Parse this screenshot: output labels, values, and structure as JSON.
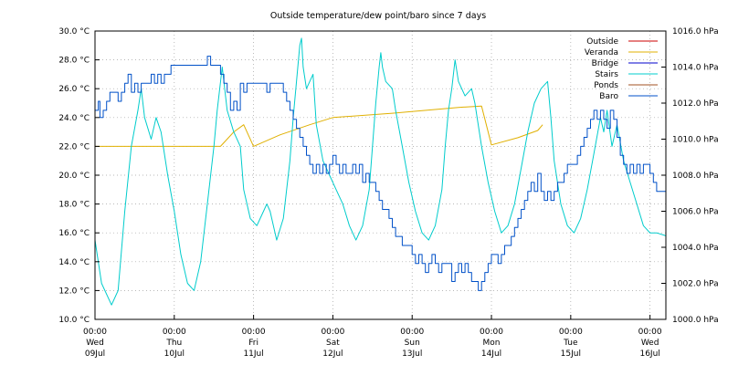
{
  "chart_data": {
    "type": "line",
    "title": "Outside temperature/dew point/baro since 7 days",
    "y_left": {
      "ticks": [
        30,
        28,
        26,
        24,
        22,
        20,
        18,
        16,
        14,
        12,
        10
      ],
      "tick_labels": [
        "30.0 °C",
        "28.0 °C",
        "26.0 °C",
        "24.0 °C",
        "22.0 °C",
        "20.0 °C",
        "18.0 °C",
        "16.0 °C",
        "14.0 °C",
        "12.0 °C",
        "10.0 °C"
      ],
      "range": [
        10,
        30
      ]
    },
    "y_right": {
      "ticks": [
        1016,
        1014,
        1012,
        1010,
        1008,
        1006,
        1004,
        1002,
        1000
      ],
      "tick_labels": [
        "1016.0 hPa",
        "1014.0 hPa",
        "1012.0 hPa",
        "1010.0 hPa",
        "1008.0 hPa",
        "1006.0 hPa",
        "1004.0 hPa",
        "1002.0 hPa",
        "1000.0 hPa"
      ],
      "range": [
        1000,
        1016
      ]
    },
    "x_axis": {
      "unit": "hours since Wed 09 Jul 00:00",
      "range": [
        0,
        172.8
      ],
      "ticks": [
        {
          "h": 0,
          "time": "00:00",
          "day": "Wed",
          "date": "09Jul"
        },
        {
          "h": 24,
          "time": "00:00",
          "day": "Thu",
          "date": "10Jul"
        },
        {
          "h": 48,
          "time": "00:00",
          "day": "Fri",
          "date": "11Jul"
        },
        {
          "h": 72,
          "time": "00:00",
          "day": "Sat",
          "date": "12Jul"
        },
        {
          "h": 96,
          "time": "00:00",
          "day": "Sun",
          "date": "13Jul"
        },
        {
          "h": 120,
          "time": "00:00",
          "day": "Mon",
          "date": "14Jul"
        },
        {
          "h": 144,
          "time": "00:00",
          "day": "Tue",
          "date": "15Jul"
        },
        {
          "h": 168,
          "time": "00:00",
          "day": "Wed",
          "date": "16Jul"
        }
      ]
    },
    "grid": true,
    "legend_position": "top-right",
    "series": [
      {
        "name": "Outside",
        "color": "#cc0000",
        "axis": "left",
        "points": []
      },
      {
        "name": "Veranda",
        "color": "#e0b000",
        "axis": "left",
        "points": [
          [
            0,
            22.0
          ],
          [
            38,
            22.0
          ],
          [
            42,
            23.0
          ],
          [
            45,
            23.5
          ],
          [
            48,
            22.0
          ],
          [
            56,
            22.8
          ],
          [
            65,
            23.5
          ],
          [
            72,
            24.0
          ],
          [
            90,
            24.3
          ],
          [
            110,
            24.7
          ],
          [
            117,
            24.8
          ],
          [
            120,
            22.1
          ],
          [
            128,
            22.6
          ],
          [
            134,
            23.1
          ],
          [
            135.5,
            23.5
          ]
        ]
      },
      {
        "name": "Bridge",
        "color": "#0000cc",
        "axis": "left",
        "points": []
      },
      {
        "name": "Stairs",
        "color": "#00cccc",
        "axis": "left",
        "points": [
          [
            0,
            15.5
          ],
          [
            2,
            12.5
          ],
          [
            5,
            11.0
          ],
          [
            7,
            12.0
          ],
          [
            9,
            17.5
          ],
          [
            11,
            22.0
          ],
          [
            13,
            24.5
          ],
          [
            14,
            26.0
          ],
          [
            15,
            24.0
          ],
          [
            17,
            22.5
          ],
          [
            18.5,
            24.0
          ],
          [
            20,
            23.0
          ],
          [
            22,
            20.0
          ],
          [
            24,
            17.5
          ],
          [
            26,
            14.5
          ],
          [
            28,
            12.5
          ],
          [
            30,
            12.0
          ],
          [
            32,
            14.0
          ],
          [
            34,
            18.0
          ],
          [
            36,
            22.0
          ],
          [
            37,
            24.5
          ],
          [
            38.5,
            27.5
          ],
          [
            40,
            24.5
          ],
          [
            42,
            23.0
          ],
          [
            44,
            22.0
          ],
          [
            45,
            19.0
          ],
          [
            47,
            17.0
          ],
          [
            49,
            16.5
          ],
          [
            51,
            17.5
          ],
          [
            52,
            18.0
          ],
          [
            53,
            17.5
          ],
          [
            55,
            15.5
          ],
          [
            57,
            17.0
          ],
          [
            59,
            21.0
          ],
          [
            60,
            24.0
          ],
          [
            61,
            26.5
          ],
          [
            62,
            29.0
          ],
          [
            62.5,
            29.5
          ],
          [
            63,
            27.5
          ],
          [
            64,
            26.0
          ],
          [
            66,
            27.0
          ],
          [
            67,
            23.5
          ],
          [
            69,
            21.0
          ],
          [
            71,
            20.0
          ],
          [
            73,
            19.0
          ],
          [
            75,
            18.0
          ],
          [
            77,
            16.5
          ],
          [
            79,
            15.5
          ],
          [
            81,
            16.5
          ],
          [
            83,
            19.0
          ],
          [
            84,
            22.0
          ],
          [
            85,
            25.0
          ],
          [
            86,
            27.5
          ],
          [
            86.5,
            28.5
          ],
          [
            87,
            27.5
          ],
          [
            88,
            26.5
          ],
          [
            90,
            26.0
          ],
          [
            91,
            24.5
          ],
          [
            93,
            22.0
          ],
          [
            95,
            19.5
          ],
          [
            97,
            17.5
          ],
          [
            99,
            16.0
          ],
          [
            101,
            15.5
          ],
          [
            103,
            16.5
          ],
          [
            105,
            19.0
          ],
          [
            106,
            22.0
          ],
          [
            107,
            24.5
          ],
          [
            108,
            26.0
          ],
          [
            109,
            28.0
          ],
          [
            110,
            26.5
          ],
          [
            112,
            25.5
          ],
          [
            114,
            26.0
          ],
          [
            115,
            25.0
          ],
          [
            117,
            22.0
          ],
          [
            119,
            19.5
          ],
          [
            121,
            17.5
          ],
          [
            123,
            16.0
          ],
          [
            125,
            16.5
          ],
          [
            127,
            18.0
          ],
          [
            129,
            20.5
          ],
          [
            131,
            23.0
          ],
          [
            133,
            25.0
          ],
          [
            135,
            26.0
          ],
          [
            137,
            26.5
          ],
          [
            138,
            24.0
          ],
          [
            139,
            21.0
          ],
          [
            141,
            18.0
          ],
          [
            143,
            16.5
          ],
          [
            145,
            16.0
          ],
          [
            147,
            17.0
          ],
          [
            149,
            19.0
          ],
          [
            151,
            21.5
          ],
          [
            153,
            24.0
          ],
          [
            154,
            23.0
          ],
          [
            155,
            24.5
          ],
          [
            156.5,
            22.0
          ],
          [
            158,
            23.5
          ],
          [
            160,
            21.0
          ],
          [
            162,
            19.5
          ],
          [
            164,
            18.0
          ],
          [
            166,
            16.5
          ],
          [
            168,
            16.0
          ],
          [
            170,
            16.0
          ],
          [
            172.8,
            15.8
          ]
        ]
      },
      {
        "name": "Ponds",
        "color": "#a05020",
        "axis": "left",
        "points": []
      },
      {
        "name": "Baro",
        "color": "#0050c8",
        "axis": "right",
        "points": [
          [
            0,
            1011.6
          ],
          [
            1,
            1012.1
          ],
          [
            1.5,
            1011.2
          ],
          [
            2.5,
            1011.6
          ],
          [
            3.5,
            1012.1
          ],
          [
            4.5,
            1012.6
          ],
          [
            6,
            1012.6
          ],
          [
            7,
            1012.1
          ],
          [
            8,
            1012.6
          ],
          [
            9,
            1013.1
          ],
          [
            10,
            1013.6
          ],
          [
            11,
            1012.6
          ],
          [
            12,
            1013.1
          ],
          [
            13,
            1012.6
          ],
          [
            14,
            1013.1
          ],
          [
            16,
            1013.1
          ],
          [
            17,
            1013.6
          ],
          [
            18,
            1013.1
          ],
          [
            19,
            1013.6
          ],
          [
            20,
            1013.1
          ],
          [
            21,
            1013.6
          ],
          [
            22,
            1013.6
          ],
          [
            23,
            1014.1
          ],
          [
            26,
            1014.1
          ],
          [
            28,
            1014.1
          ],
          [
            30,
            1014.1
          ],
          [
            32,
            1014.1
          ],
          [
            34,
            1014.6
          ],
          [
            35,
            1014.1
          ],
          [
            37,
            1014.1
          ],
          [
            38,
            1013.6
          ],
          [
            39,
            1013.1
          ],
          [
            40,
            1012.6
          ],
          [
            41,
            1011.6
          ],
          [
            42,
            1012.1
          ],
          [
            43,
            1011.6
          ],
          [
            44,
            1013.1
          ],
          [
            45,
            1012.6
          ],
          [
            46,
            1013.1
          ],
          [
            48,
            1013.1
          ],
          [
            51,
            1013.1
          ],
          [
            52,
            1012.6
          ],
          [
            53,
            1013.1
          ],
          [
            56,
            1013.1
          ],
          [
            57,
            1012.6
          ],
          [
            58,
            1012.1
          ],
          [
            59,
            1011.6
          ],
          [
            60,
            1011.1
          ],
          [
            61,
            1010.6
          ],
          [
            62,
            1010.1
          ],
          [
            63,
            1009.6
          ],
          [
            64,
            1009.1
          ],
          [
            65,
            1008.6
          ],
          [
            66,
            1008.1
          ],
          [
            67,
            1008.6
          ],
          [
            68,
            1008.1
          ],
          [
            69,
            1008.6
          ],
          [
            70,
            1008.1
          ],
          [
            71,
            1008.6
          ],
          [
            72,
            1009.1
          ],
          [
            73,
            1008.6
          ],
          [
            74,
            1008.1
          ],
          [
            75,
            1008.6
          ],
          [
            76,
            1008.1
          ],
          [
            78,
            1008.6
          ],
          [
            79,
            1008.1
          ],
          [
            80,
            1008.6
          ],
          [
            81,
            1007.6
          ],
          [
            82,
            1008.1
          ],
          [
            83,
            1007.6
          ],
          [
            84,
            1007.6
          ],
          [
            85,
            1007.1
          ],
          [
            86,
            1006.6
          ],
          [
            87,
            1006.1
          ],
          [
            88,
            1006.1
          ],
          [
            89,
            1005.6
          ],
          [
            90,
            1005.1
          ],
          [
            91,
            1004.6
          ],
          [
            92,
            1004.6
          ],
          [
            93,
            1004.1
          ],
          [
            95,
            1004.1
          ],
          [
            96,
            1003.6
          ],
          [
            97,
            1003.1
          ],
          [
            98,
            1003.6
          ],
          [
            99,
            1003.1
          ],
          [
            100,
            1002.6
          ],
          [
            101,
            1003.1
          ],
          [
            102,
            1003.6
          ],
          [
            103,
            1003.1
          ],
          [
            104,
            1002.6
          ],
          [
            105,
            1003.1
          ],
          [
            107,
            1003.1
          ],
          [
            108,
            1002.1
          ],
          [
            109,
            1002.6
          ],
          [
            110,
            1003.1
          ],
          [
            111,
            1002.6
          ],
          [
            112,
            1003.1
          ],
          [
            113,
            1002.6
          ],
          [
            114,
            1002.1
          ],
          [
            115,
            1002.1
          ],
          [
            116,
            1001.6
          ],
          [
            117,
            1002.1
          ],
          [
            118,
            1002.6
          ],
          [
            119,
            1003.1
          ],
          [
            120,
            1003.6
          ],
          [
            121,
            1003.6
          ],
          [
            122,
            1003.1
          ],
          [
            123,
            1003.6
          ],
          [
            124,
            1004.1
          ],
          [
            126,
            1004.6
          ],
          [
            127,
            1005.1
          ],
          [
            128,
            1005.6
          ],
          [
            129,
            1006.1
          ],
          [
            130,
            1006.6
          ],
          [
            131,
            1007.1
          ],
          [
            132,
            1007.6
          ],
          [
            133,
            1007.1
          ],
          [
            134,
            1008.1
          ],
          [
            135,
            1007.1
          ],
          [
            136,
            1006.6
          ],
          [
            137,
            1007.1
          ],
          [
            138,
            1006.6
          ],
          [
            139,
            1007.1
          ],
          [
            140,
            1007.6
          ],
          [
            141,
            1007.6
          ],
          [
            142,
            1008.1
          ],
          [
            143,
            1008.6
          ],
          [
            144,
            1008.6
          ],
          [
            145,
            1008.6
          ],
          [
            146,
            1009.1
          ],
          [
            147,
            1009.6
          ],
          [
            148,
            1010.1
          ],
          [
            149,
            1010.6
          ],
          [
            150,
            1011.1
          ],
          [
            151,
            1011.6
          ],
          [
            152,
            1011.1
          ],
          [
            153,
            1011.6
          ],
          [
            154,
            1011.1
          ],
          [
            155,
            1010.6
          ],
          [
            156,
            1011.6
          ],
          [
            157,
            1011.1
          ],
          [
            158,
            1010.1
          ],
          [
            159,
            1009.1
          ],
          [
            160,
            1008.6
          ],
          [
            161,
            1008.1
          ],
          [
            162,
            1008.6
          ],
          [
            163,
            1008.1
          ],
          [
            164,
            1008.6
          ],
          [
            165,
            1008.1
          ],
          [
            166,
            1008.6
          ],
          [
            167,
            1008.6
          ],
          [
            168,
            1008.1
          ],
          [
            169,
            1007.6
          ],
          [
            170,
            1007.1
          ],
          [
            172.8,
            1007.1
          ]
        ]
      }
    ]
  }
}
